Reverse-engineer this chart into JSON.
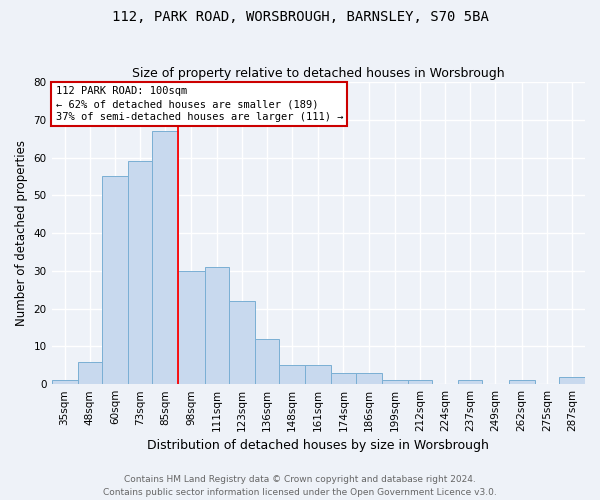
{
  "title": "112, PARK ROAD, WORSBROUGH, BARNSLEY, S70 5BA",
  "subtitle": "Size of property relative to detached houses in Worsbrough",
  "xlabel": "Distribution of detached houses by size in Worsbrough",
  "ylabel": "Number of detached properties",
  "bin_labels": [
    "35sqm",
    "48sqm",
    "60sqm",
    "73sqm",
    "85sqm",
    "98sqm",
    "111sqm",
    "123sqm",
    "136sqm",
    "148sqm",
    "161sqm",
    "174sqm",
    "186sqm",
    "199sqm",
    "212sqm",
    "224sqm",
    "237sqm",
    "249sqm",
    "262sqm",
    "275sqm",
    "287sqm"
  ],
  "bin_edges": [
    35,
    48,
    60,
    73,
    85,
    98,
    111,
    123,
    136,
    148,
    161,
    174,
    186,
    199,
    212,
    224,
    237,
    249,
    262,
    275,
    287,
    300
  ],
  "counts": [
    1,
    6,
    55,
    59,
    67,
    30,
    31,
    22,
    12,
    5,
    5,
    3,
    3,
    1,
    1,
    0,
    1,
    0,
    1,
    0,
    2
  ],
  "bar_facecolor": "#c8d9ee",
  "bar_edgecolor": "#7aafd4",
  "red_line_x": 98,
  "annotation_title": "112 PARK ROAD: 100sqm",
  "annotation_line1": "← 62% of detached houses are smaller (189)",
  "annotation_line2": "37% of semi-detached houses are larger (111) →",
  "annot_facecolor": "#ffffff",
  "annot_edgecolor": "#cc0000",
  "ylim_max": 80,
  "yticks": [
    0,
    10,
    20,
    30,
    40,
    50,
    60,
    70,
    80
  ],
  "footer1": "Contains HM Land Registry data © Crown copyright and database right 2024.",
  "footer2": "Contains public sector information licensed under the Open Government Licence v3.0.",
  "bg_color": "#eef2f8",
  "grid_color": "#ffffff",
  "title_fontsize": 10,
  "subtitle_fontsize": 9,
  "ylabel_fontsize": 8.5,
  "xlabel_fontsize": 9,
  "tick_fontsize": 7.5,
  "annot_fontsize": 7.5,
  "footer_fontsize": 6.5
}
